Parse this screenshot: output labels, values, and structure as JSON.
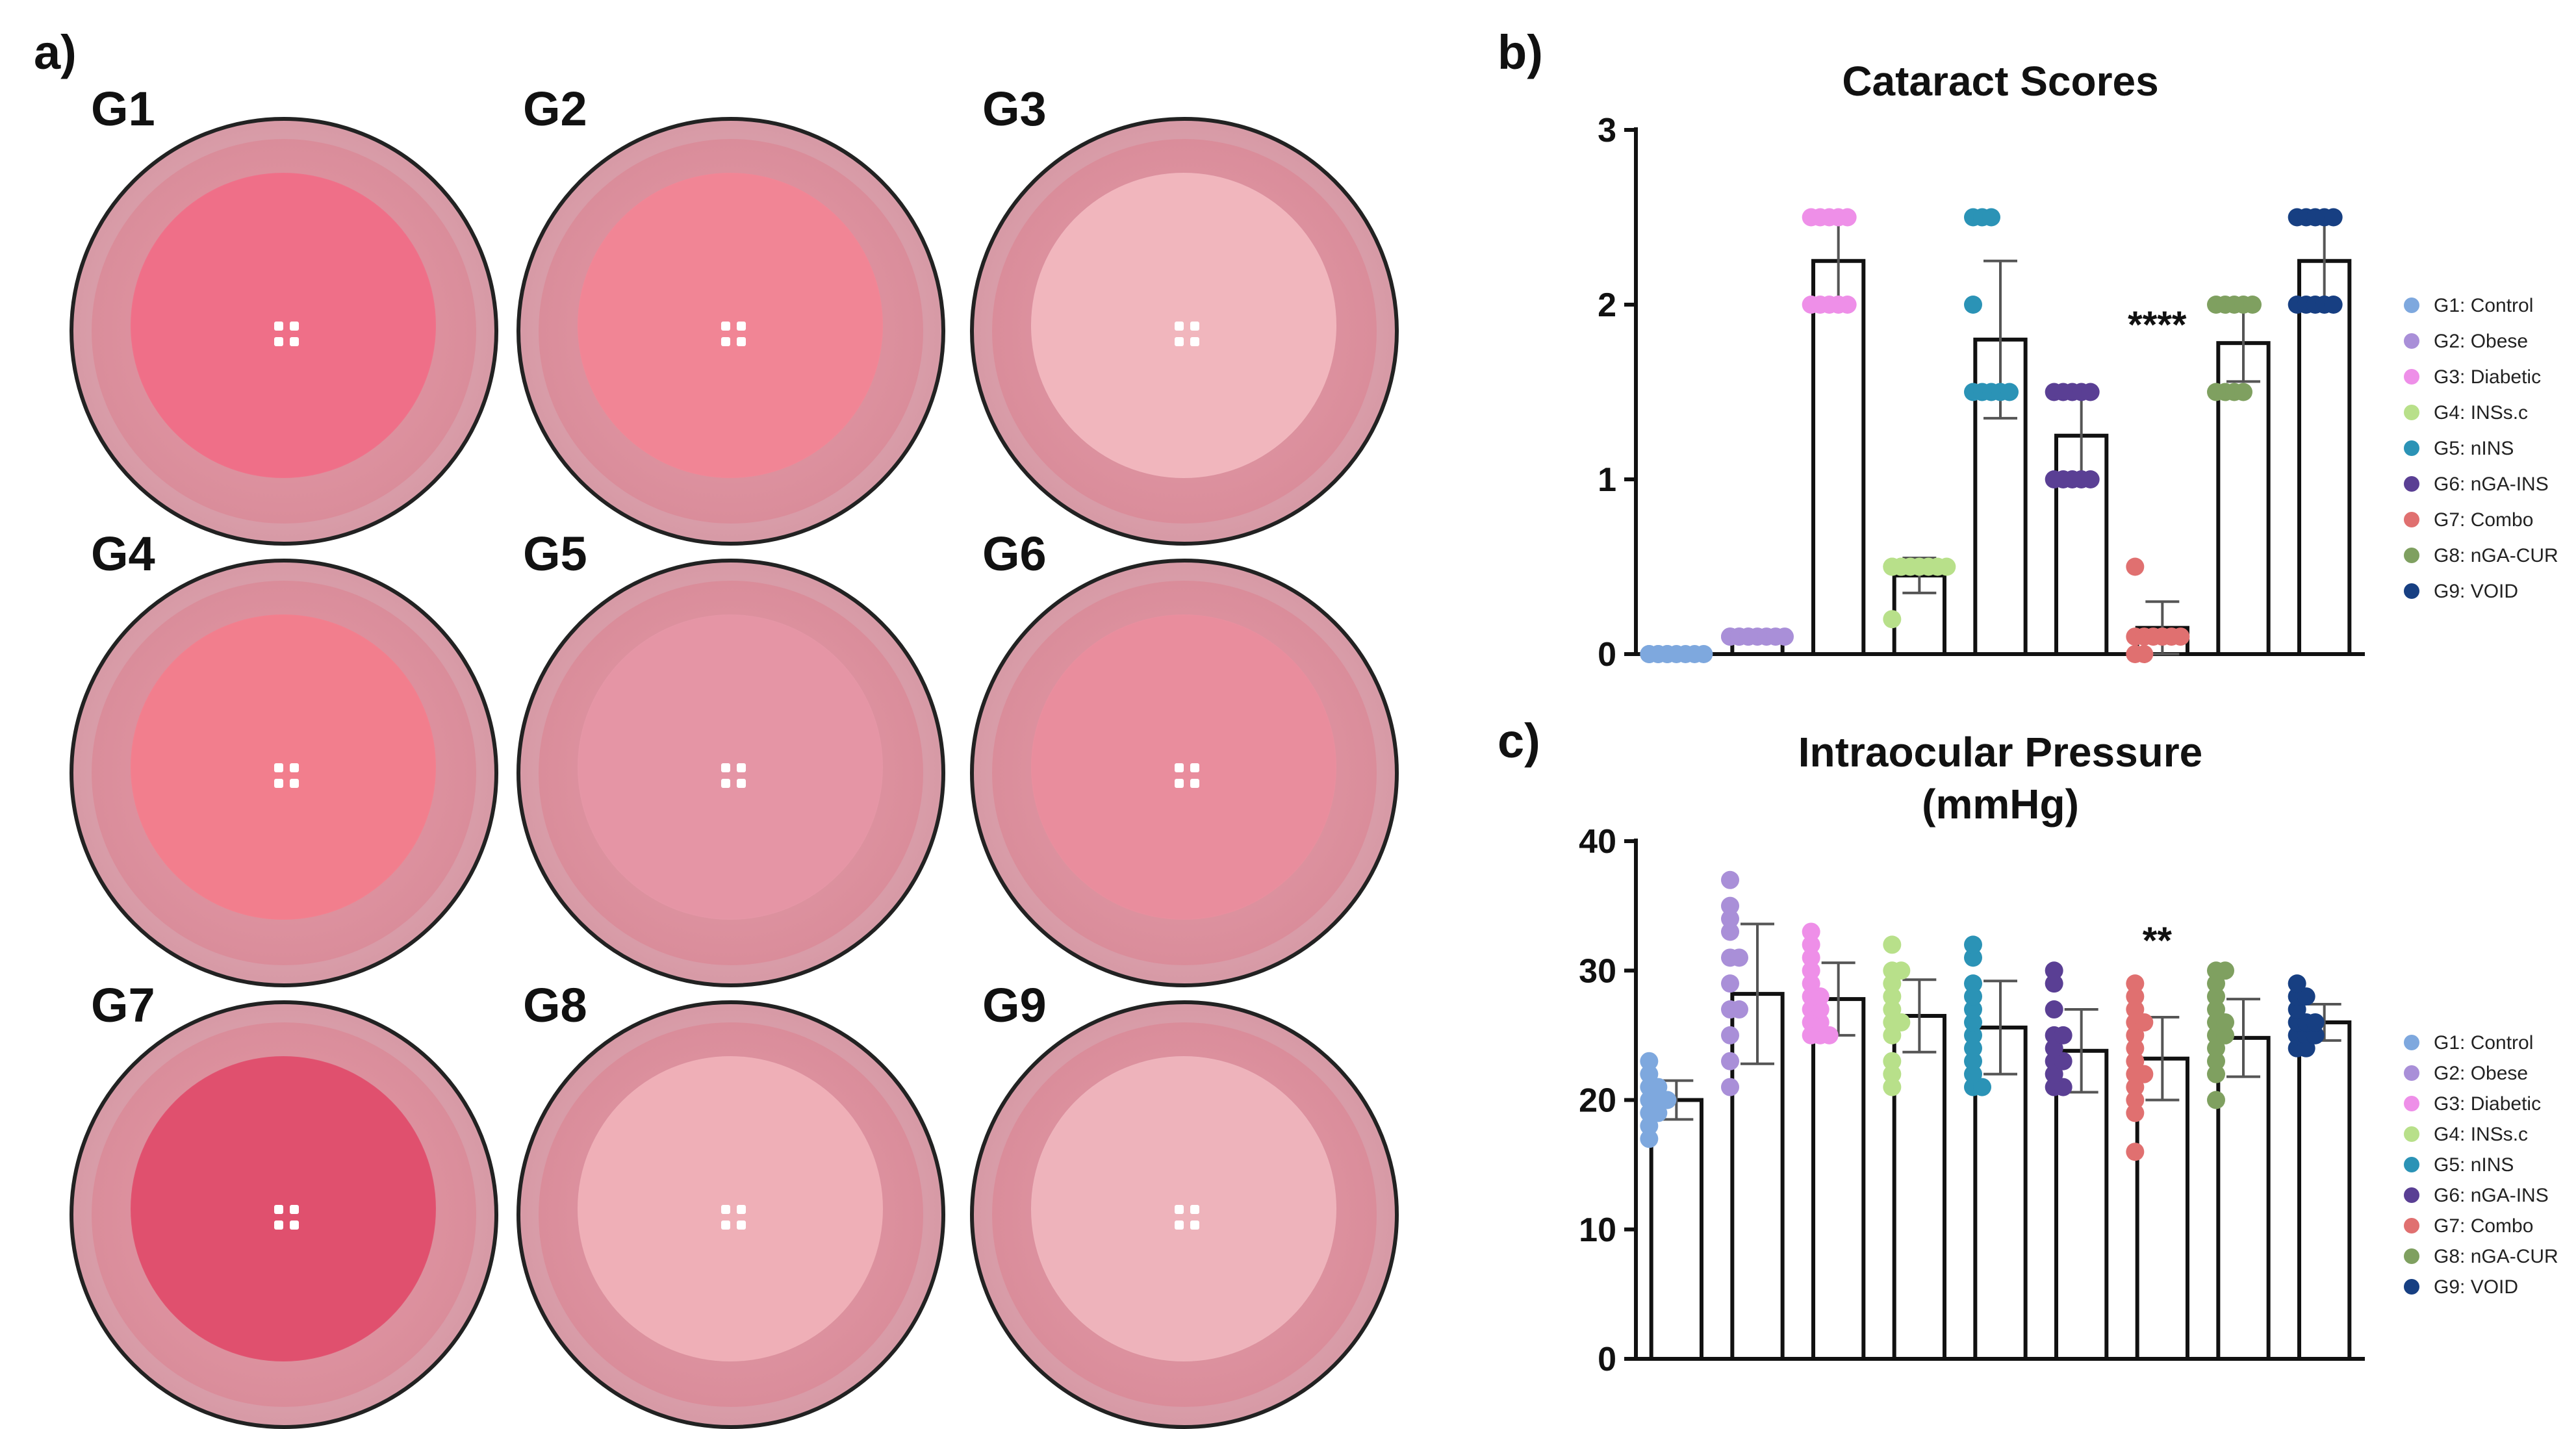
{
  "panel_labels": {
    "a": "a)",
    "b": "b)",
    "c": "c)"
  },
  "photos": [
    {
      "label": "G1",
      "color": "#ef6f88"
    },
    {
      "label": "G2",
      "color": "#f18595"
    },
    {
      "label": "G3",
      "color": "#f1b6bd"
    },
    {
      "label": "G4",
      "color": "#f27e8d"
    },
    {
      "label": "G5",
      "color": "#e595a5"
    },
    {
      "label": "G6",
      "color": "#e98d9d"
    },
    {
      "label": "G7",
      "color": "#e0506e"
    },
    {
      "label": "G8",
      "color": "#efafb7"
    },
    {
      "label": "G9",
      "color": "#eeb3bb"
    }
  ],
  "chart_data": [
    {
      "type": "bar",
      "title": "Cataract Scores",
      "categories": [
        "G1: Control",
        "G2: Obese",
        "G3: Diabetic",
        "G4: INSs.c",
        "G5: nINS",
        "G6: nGA-INS",
        "G7: Combo",
        "G8: nGA-CUR",
        "G9: VOID"
      ],
      "colors": [
        "#7ea8de",
        "#a98fd8",
        "#ee8fe8",
        "#b8e08a",
        "#2b93b6",
        "#5a3f94",
        "#e07070",
        "#7fa060",
        "#173f82"
      ],
      "values": [
        0,
        0.1,
        2.25,
        0.45,
        1.8,
        1.25,
        0.15,
        1.78,
        2.25
      ],
      "errors": [
        0,
        0,
        0.25,
        0.1,
        0.45,
        0.25,
        0.15,
        0.22,
        0.25
      ],
      "points": [
        [
          0,
          0,
          0,
          0,
          0,
          0,
          0,
          0,
          0,
          0
        ],
        [
          0.1,
          0.1,
          0.1,
          0.1,
          0.1,
          0.1,
          0.1,
          0.1,
          0.1,
          0.1
        ],
        [
          2,
          2,
          2,
          2,
          2,
          2.5,
          2.5,
          2.5,
          2.5,
          2.5
        ],
        [
          0.2,
          0.5,
          0.5,
          0.5,
          0.5,
          0.5,
          0.5,
          0.5,
          0.5,
          0.5
        ],
        [
          1.5,
          1.5,
          1.5,
          1.5,
          1.5,
          2,
          2.5,
          2.5,
          2.5
        ],
        [
          1,
          1,
          1,
          1,
          1,
          1.5,
          1.5,
          1.5,
          1.5,
          1.5
        ],
        [
          0,
          0,
          0.1,
          0.1,
          0.1,
          0.1,
          0.1,
          0.1,
          0.5
        ],
        [
          1.5,
          1.5,
          1.5,
          1.5,
          2,
          2,
          2,
          2,
          2
        ],
        [
          2,
          2,
          2,
          2,
          2,
          2.5,
          2.5,
          2.5,
          2.5,
          2.5
        ]
      ],
      "significance": {
        "index": 6,
        "label": "****"
      },
      "yticks": [
        "0",
        "1",
        "2",
        "3"
      ],
      "ylim": [
        0,
        3
      ],
      "legend": "right"
    },
    {
      "type": "bar",
      "title": "Intraocular Pressure",
      "subtitle": "(mmHg)",
      "categories": [
        "G1: Control",
        "G2: Obese",
        "G3: Diabetic",
        "G4: INSs.c",
        "G5: nINS",
        "G6: nGA-INS",
        "G7: Combo",
        "G8: nGA-CUR",
        "G9: VOID"
      ],
      "colors": [
        "#7ea8de",
        "#a98fd8",
        "#ee8fe8",
        "#b8e08a",
        "#2b93b6",
        "#5a3f94",
        "#e07070",
        "#7fa060",
        "#173f82"
      ],
      "values": [
        20,
        28.2,
        27.8,
        26.5,
        25.6,
        23.8,
        23.2,
        24.8,
        26
      ],
      "errors": [
        1.5,
        5.4,
        2.8,
        2.8,
        3.6,
        3.2,
        3.2,
        3,
        1.4
      ],
      "points": [
        [
          17,
          18,
          19,
          19,
          20,
          20,
          20,
          21,
          21,
          22,
          23
        ],
        [
          21,
          23,
          25,
          27,
          27,
          29,
          31,
          31,
          33,
          34,
          35,
          37
        ],
        [
          25,
          25,
          25,
          26,
          26,
          27,
          27,
          28,
          28,
          29,
          30,
          31,
          32,
          33
        ],
        [
          21,
          22,
          23,
          25,
          26,
          26,
          27,
          28,
          29,
          30,
          30,
          32
        ],
        [
          21,
          21,
          22,
          23,
          24,
          25,
          26,
          27,
          28,
          29,
          31,
          32
        ],
        [
          21,
          21,
          22,
          23,
          23,
          24,
          25,
          25,
          27,
          29,
          30
        ],
        [
          16,
          19,
          20,
          21,
          22,
          22,
          23,
          24,
          25,
          26,
          26,
          27,
          28,
          29
        ],
        [
          20,
          22,
          23,
          24,
          25,
          25,
          26,
          26,
          27,
          28,
          29,
          30,
          30
        ],
        [
          24,
          24,
          25,
          25,
          25,
          26,
          26,
          26,
          27,
          28,
          28,
          29
        ]
      ],
      "significance": {
        "index": 6,
        "label": "**"
      },
      "yticks": [
        "0",
        "10",
        "20",
        "30",
        "40"
      ],
      "ylim": [
        0,
        40
      ],
      "legend": "right"
    }
  ]
}
